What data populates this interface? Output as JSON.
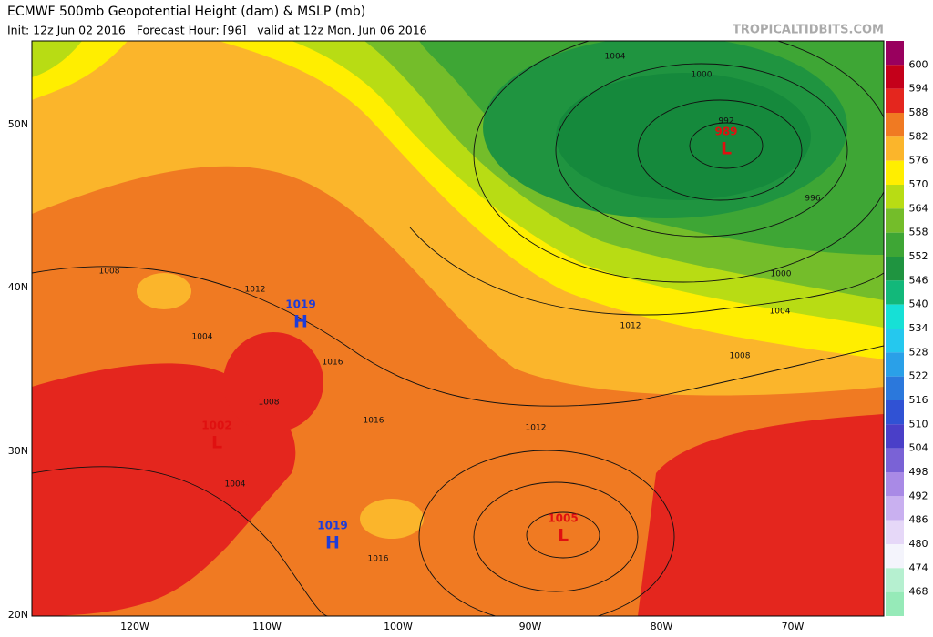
{
  "header": {
    "title": "ECMWF 500mb Geopotential Height (dam) & MSLP (mb)",
    "subtitle": "Init: 12z Jun 02 2016   Forecast Hour: [96]   valid at 12z Mon, Jun 06 2016",
    "site": "TROPICALTIDBITS.COM"
  },
  "colorbar": {
    "labels": [
      "600",
      "594",
      "588",
      "582",
      "576",
      "570",
      "564",
      "558",
      "552",
      "546",
      "540",
      "534",
      "528",
      "522",
      "516",
      "510",
      "504",
      "498",
      "492",
      "486",
      "480",
      "474",
      "468"
    ]
  },
  "latitude_labels": [
    "50N",
    "40N",
    "30N",
    "20N"
  ],
  "longitude_labels": [
    "120W",
    "110W",
    "100W",
    "90W",
    "80W",
    "70W"
  ],
  "pressure_centers": [
    {
      "letter": "L",
      "value": "989"
    },
    {
      "letter": "H",
      "value": "1019"
    },
    {
      "letter": "L",
      "value": "1002"
    },
    {
      "letter": "H",
      "value": "1019"
    },
    {
      "letter": "L",
      "value": "1005"
    }
  ],
  "isobar_labels": [
    "1004",
    "1000",
    "992",
    "1008",
    "1012",
    "1004",
    "1016",
    "1008",
    "1016",
    "1012",
    "1004",
    "1016",
    "1012",
    "1008",
    "1004",
    "1000",
    "996"
  ]
}
